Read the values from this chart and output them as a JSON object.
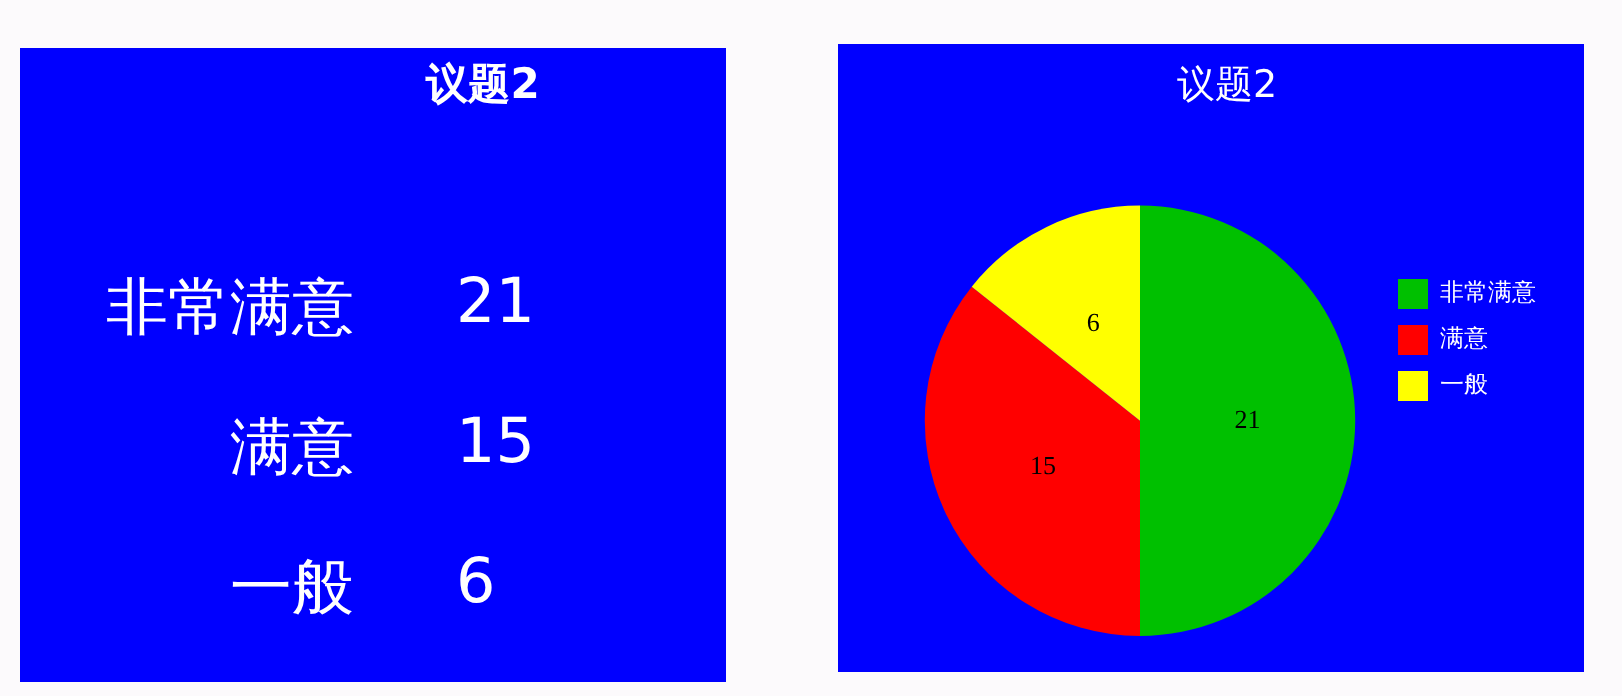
{
  "chart_data": [
    {
      "type": "other",
      "title": "议题2",
      "categories": [
        "非常满意",
        "满意",
        "一般"
      ],
      "values": [
        21,
        15,
        6
      ],
      "data_labels": true
    },
    {
      "type": "pie",
      "title": "议题2",
      "categories": [
        "非常满意",
        "满意",
        "一般"
      ],
      "values": [
        21,
        15,
        6
      ],
      "colors": [
        "#00c000",
        "#ff0000",
        "#ffff00"
      ],
      "legend": "right",
      "data_labels": true
    }
  ]
}
